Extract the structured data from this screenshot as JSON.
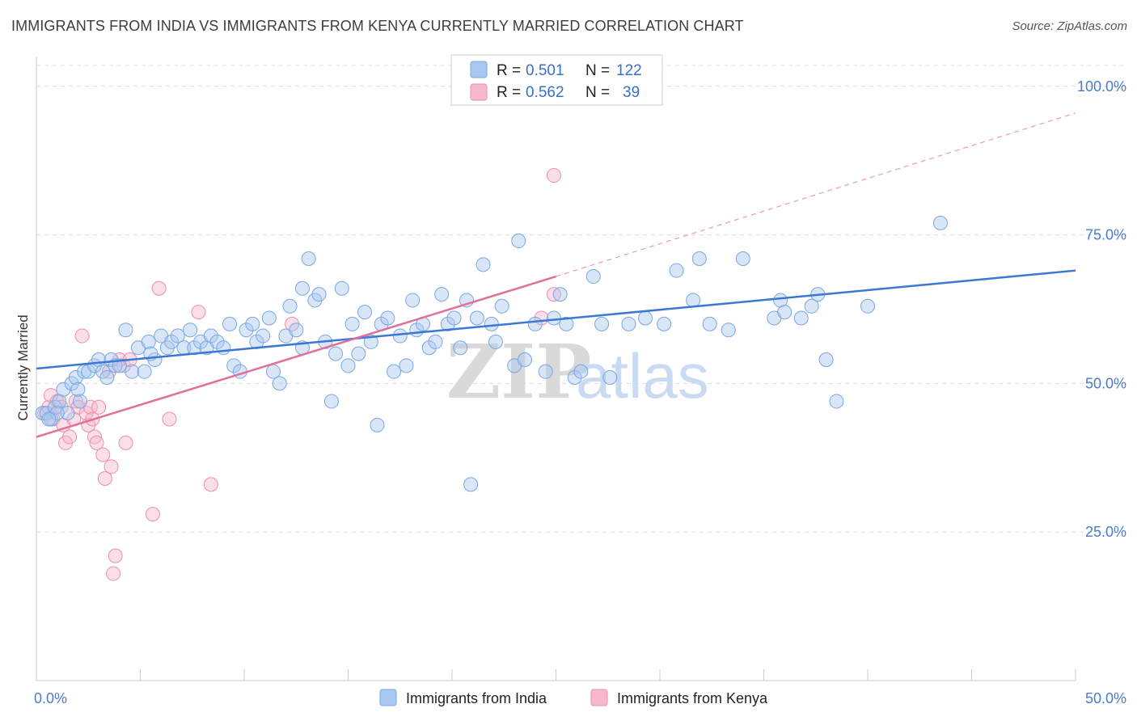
{
  "title": "IMMIGRANTS FROM INDIA VS IMMIGRANTS FROM KENYA CURRENTLY MARRIED CORRELATION CHART",
  "source": "Source: ZipAtlas.com",
  "watermark": {
    "zip": "ZIP",
    "atlas": "atlas"
  },
  "legend_top": {
    "r_label": "R =",
    "n_label": "N =",
    "items": [
      {
        "r": "0.501",
        "n": "122",
        "color": "#a9c8ef"
      },
      {
        "r": "0.562",
        "n": "39",
        "color": "#f6b8cc"
      }
    ]
  },
  "legend_bottom": [
    {
      "label": "Immigrants from India",
      "color": "#a9c8ef"
    },
    {
      "label": "Immigrants from Kenya",
      "color": "#f6b8cc"
    }
  ],
  "chart_data": {
    "type": "scatter",
    "title": "IMMIGRANTS FROM INDIA VS IMMIGRANTS FROM KENYA CURRENTLY MARRIED CORRELATION CHART",
    "xlabel": "",
    "ylabel": "Currently Married",
    "xlim": [
      0,
      50
    ],
    "ylim": [
      0,
      105
    ],
    "x_tick_labels": [
      "0.0%",
      "50.0%"
    ],
    "y_ticks": [
      25,
      50,
      75,
      100
    ],
    "y_tick_labels": [
      "25.0%",
      "50.0%",
      "75.0%",
      "100.0%"
    ],
    "grid": true,
    "colors": {
      "india": "#3a78d4",
      "kenya": "#e0709a"
    },
    "series": [
      {
        "name": "Immigrants from India",
        "r": 0.501,
        "n": 122,
        "trend": {
          "x": [
            0,
            50
          ],
          "y": [
            52.5,
            69.0
          ]
        },
        "points": [
          [
            0.3,
            45
          ],
          [
            0.5,
            45
          ],
          [
            0.7,
            44
          ],
          [
            0.9,
            46
          ],
          [
            1.1,
            47
          ],
          [
            1.3,
            49
          ],
          [
            1.5,
            45
          ],
          [
            1.7,
            50
          ],
          [
            1.9,
            51
          ],
          [
            2.1,
            47
          ],
          [
            2.3,
            52
          ],
          [
            2.5,
            52
          ],
          [
            2.8,
            53
          ],
          [
            3.0,
            54
          ],
          [
            3.2,
            52
          ],
          [
            3.4,
            51
          ],
          [
            3.6,
            54
          ],
          [
            3.8,
            53
          ],
          [
            4.0,
            53
          ],
          [
            4.3,
            59
          ],
          [
            4.6,
            52
          ],
          [
            4.9,
            56
          ],
          [
            5.2,
            52
          ],
          [
            5.4,
            57
          ],
          [
            5.7,
            54
          ],
          [
            6.0,
            58
          ],
          [
            6.3,
            56
          ],
          [
            6.5,
            57
          ],
          [
            6.8,
            58
          ],
          [
            7.1,
            56
          ],
          [
            7.4,
            59
          ],
          [
            7.6,
            56
          ],
          [
            7.9,
            57
          ],
          [
            8.2,
            56
          ],
          [
            8.4,
            58
          ],
          [
            8.7,
            57
          ],
          [
            9.0,
            56
          ],
          [
            9.3,
            60
          ],
          [
            9.5,
            53
          ],
          [
            9.8,
            52
          ],
          [
            10.1,
            59
          ],
          [
            10.4,
            60
          ],
          [
            10.6,
            57
          ],
          [
            10.9,
            58
          ],
          [
            11.2,
            61
          ],
          [
            11.4,
            52
          ],
          [
            11.7,
            50
          ],
          [
            12.0,
            58
          ],
          [
            12.2,
            63
          ],
          [
            12.5,
            59
          ],
          [
            12.8,
            56
          ],
          [
            13.1,
            71
          ],
          [
            13.4,
            64
          ],
          [
            13.6,
            65
          ],
          [
            13.9,
            57
          ],
          [
            14.2,
            47
          ],
          [
            14.4,
            55
          ],
          [
            14.7,
            66
          ],
          [
            15.0,
            53
          ],
          [
            15.2,
            60
          ],
          [
            15.5,
            55
          ],
          [
            15.8,
            62
          ],
          [
            16.1,
            57
          ],
          [
            16.4,
            43
          ],
          [
            16.6,
            60
          ],
          [
            16.9,
            61
          ],
          [
            17.2,
            52
          ],
          [
            17.5,
            58
          ],
          [
            17.8,
            53
          ],
          [
            18.1,
            64
          ],
          [
            18.3,
            59
          ],
          [
            18.6,
            60
          ],
          [
            18.9,
            56
          ],
          [
            19.2,
            57
          ],
          [
            19.5,
            65
          ],
          [
            19.8,
            60
          ],
          [
            20.1,
            61
          ],
          [
            20.4,
            56
          ],
          [
            20.7,
            64
          ],
          [
            20.9,
            33
          ],
          [
            21.2,
            61
          ],
          [
            21.5,
            70
          ],
          [
            21.9,
            60
          ],
          [
            22.1,
            57
          ],
          [
            22.4,
            63
          ],
          [
            23.0,
            53
          ],
          [
            23.2,
            74
          ],
          [
            23.5,
            54
          ],
          [
            24.0,
            60
          ],
          [
            24.5,
            52
          ],
          [
            24.9,
            61
          ],
          [
            25.2,
            65
          ],
          [
            25.5,
            60
          ],
          [
            25.9,
            51
          ],
          [
            26.2,
            52
          ],
          [
            26.8,
            68
          ],
          [
            27.2,
            60
          ],
          [
            27.6,
            51
          ],
          [
            28.5,
            60
          ],
          [
            29.3,
            61
          ],
          [
            30.2,
            60
          ],
          [
            30.8,
            69
          ],
          [
            31.6,
            64
          ],
          [
            31.9,
            71
          ],
          [
            32.4,
            60
          ],
          [
            33.3,
            59
          ],
          [
            34.0,
            71
          ],
          [
            35.5,
            61
          ],
          [
            35.8,
            64
          ],
          [
            36.0,
            62
          ],
          [
            36.8,
            61
          ],
          [
            37.3,
            63
          ],
          [
            37.6,
            65
          ],
          [
            38.0,
            54
          ],
          [
            38.5,
            47
          ],
          [
            40.0,
            63
          ],
          [
            43.5,
            77
          ],
          [
            1.0,
            45
          ],
          [
            0.6,
            44
          ],
          [
            2.0,
            49
          ],
          [
            5.5,
            55
          ],
          [
            12.8,
            66
          ]
        ]
      },
      {
        "name": "Immigrants from Kenya",
        "r": 0.562,
        "n": 39,
        "trend": {
          "x": [
            0,
            25
          ],
          "y": [
            41.0,
            68.0
          ]
        },
        "trend_extension": {
          "x": [
            25,
            50
          ],
          "y": [
            68.0,
            95.5
          ]
        },
        "points": [
          [
            0.4,
            45
          ],
          [
            0.6,
            46
          ],
          [
            0.7,
            48
          ],
          [
            0.8,
            44
          ],
          [
            1.0,
            47
          ],
          [
            1.2,
            46
          ],
          [
            1.3,
            43
          ],
          [
            1.4,
            40
          ],
          [
            1.6,
            41
          ],
          [
            1.8,
            44
          ],
          [
            1.9,
            47
          ],
          [
            2.0,
            46
          ],
          [
            2.2,
            58
          ],
          [
            2.4,
            45
          ],
          [
            2.5,
            43
          ],
          [
            2.6,
            46
          ],
          [
            2.7,
            44
          ],
          [
            2.8,
            41
          ],
          [
            2.9,
            40
          ],
          [
            3.0,
            46
          ],
          [
            3.2,
            38
          ],
          [
            3.3,
            34
          ],
          [
            3.5,
            52
          ],
          [
            3.6,
            36
          ],
          [
            3.7,
            18
          ],
          [
            3.8,
            21
          ],
          [
            4.0,
            54
          ],
          [
            4.2,
            53
          ],
          [
            4.3,
            40
          ],
          [
            4.5,
            54
          ],
          [
            5.6,
            28
          ],
          [
            5.9,
            66
          ],
          [
            6.4,
            44
          ],
          [
            7.8,
            62
          ],
          [
            8.4,
            33
          ],
          [
            12.3,
            60
          ],
          [
            24.3,
            61
          ],
          [
            24.9,
            65
          ],
          [
            24.9,
            85
          ]
        ]
      }
    ]
  }
}
